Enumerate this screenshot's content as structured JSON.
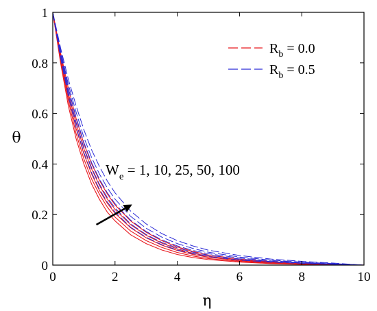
{
  "chart_data": {
    "type": "line",
    "title": "",
    "xlabel": "η",
    "ylabel": "θ",
    "xlim": [
      0,
      10
    ],
    "ylim": [
      0,
      1
    ],
    "x_ticks": [
      "0",
      "2",
      "4",
      "6",
      "8",
      "10"
    ],
    "y_ticks": [
      "0",
      "0.2",
      "0.4",
      "0.6",
      "0.8",
      "1"
    ],
    "grid": false,
    "legend": {
      "placement": "top-right",
      "entries": [
        {
          "label_main": "R",
          "label_sub": "b",
          "label_tail": " = 0.0",
          "color": "#e8191f",
          "dash": "long-dash"
        },
        {
          "label_main": "R",
          "label_sub": "b",
          "label_tail": " = 0.5",
          "color": "#2a2ad6",
          "dash": "long-dash"
        }
      ]
    },
    "annotation": {
      "text_main": "W",
      "text_sub": "e",
      "text_tail": " = 1, 10, 25, 50, 100",
      "arrow_from": [
        1.4,
        0.16
      ],
      "arrow_to": [
        2.55,
        0.24
      ]
    },
    "We_values": [
      1,
      10,
      25,
      50,
      100
    ],
    "x": [
      0,
      0.25,
      0.5,
      0.75,
      1,
      1.25,
      1.5,
      1.75,
      2,
      2.5,
      3,
      3.5,
      4,
      4.5,
      5,
      6,
      7,
      8,
      9,
      10
    ],
    "series": [
      {
        "group": "Rb=0.0",
        "We": 1,
        "values": [
          1.0,
          0.8,
          0.63,
          0.5,
          0.4,
          0.32,
          0.26,
          0.21,
          0.175,
          0.12,
          0.085,
          0.06,
          0.042,
          0.03,
          0.022,
          0.012,
          0.006,
          0.003,
          0.001,
          0.0
        ]
      },
      {
        "group": "Rb=0.0",
        "We": 10,
        "values": [
          1.0,
          0.81,
          0.65,
          0.52,
          0.42,
          0.34,
          0.28,
          0.23,
          0.19,
          0.135,
          0.097,
          0.07,
          0.05,
          0.036,
          0.026,
          0.015,
          0.008,
          0.004,
          0.002,
          0.0
        ]
      },
      {
        "group": "Rb=0.0",
        "We": 25,
        "values": [
          1.0,
          0.82,
          0.665,
          0.54,
          0.44,
          0.36,
          0.295,
          0.245,
          0.205,
          0.148,
          0.108,
          0.079,
          0.058,
          0.042,
          0.031,
          0.018,
          0.01,
          0.005,
          0.002,
          0.0
        ]
      },
      {
        "group": "Rb=0.0",
        "We": 50,
        "values": [
          1.0,
          0.83,
          0.68,
          0.56,
          0.46,
          0.38,
          0.315,
          0.262,
          0.22,
          0.16,
          0.118,
          0.087,
          0.064,
          0.047,
          0.035,
          0.021,
          0.012,
          0.006,
          0.003,
          0.0
        ]
      },
      {
        "group": "Rb=0.0",
        "We": 100,
        "values": [
          1.0,
          0.84,
          0.7,
          0.58,
          0.48,
          0.4,
          0.335,
          0.282,
          0.238,
          0.175,
          0.13,
          0.097,
          0.072,
          0.054,
          0.04,
          0.024,
          0.014,
          0.008,
          0.004,
          0.0
        ]
      },
      {
        "group": "Rb=0.5",
        "We": 1,
        "values": [
          1.0,
          0.82,
          0.67,
          0.545,
          0.445,
          0.365,
          0.3,
          0.25,
          0.21,
          0.15,
          0.11,
          0.081,
          0.06,
          0.045,
          0.034,
          0.02,
          0.012,
          0.007,
          0.003,
          0.0
        ]
      },
      {
        "group": "Rb=0.5",
        "We": 10,
        "values": [
          1.0,
          0.83,
          0.685,
          0.565,
          0.465,
          0.385,
          0.32,
          0.268,
          0.226,
          0.163,
          0.121,
          0.09,
          0.068,
          0.051,
          0.039,
          0.024,
          0.014,
          0.008,
          0.004,
          0.0
        ]
      },
      {
        "group": "Rb=0.5",
        "We": 25,
        "values": [
          1.0,
          0.84,
          0.7,
          0.585,
          0.485,
          0.405,
          0.34,
          0.287,
          0.243,
          0.178,
          0.133,
          0.1,
          0.076,
          0.058,
          0.045,
          0.028,
          0.017,
          0.01,
          0.005,
          0.0
        ]
      },
      {
        "group": "Rb=0.5",
        "We": 50,
        "values": [
          1.0,
          0.85,
          0.715,
          0.605,
          0.505,
          0.425,
          0.36,
          0.306,
          0.261,
          0.193,
          0.146,
          0.111,
          0.085,
          0.066,
          0.051,
          0.032,
          0.02,
          0.012,
          0.006,
          0.0
        ]
      },
      {
        "group": "Rb=0.5",
        "We": 100,
        "values": [
          1.0,
          0.86,
          0.735,
          0.63,
          0.535,
          0.455,
          0.39,
          0.333,
          0.286,
          0.214,
          0.163,
          0.125,
          0.097,
          0.076,
          0.059,
          0.038,
          0.024,
          0.015,
          0.008,
          0.0
        ]
      }
    ]
  }
}
